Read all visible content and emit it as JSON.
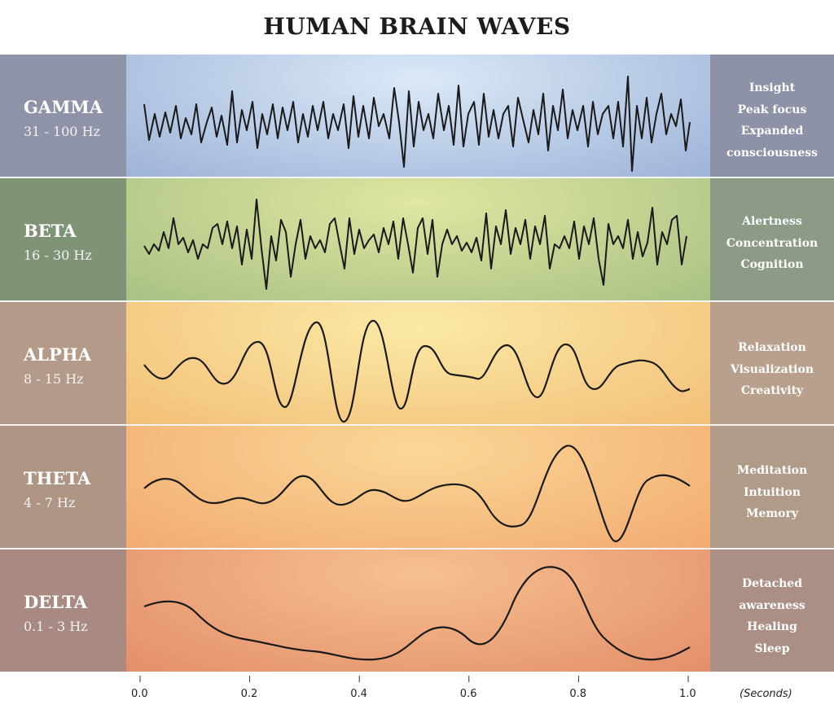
{
  "title": "HUMAN BRAIN WAVES",
  "bands": [
    {
      "name": "GAMMA",
      "range": "31 - 100 Hz",
      "states": [
        "Insight",
        "Peak focus",
        "Expanded",
        "consciousness"
      ],
      "colors": {
        "left": "#8e93a8",
        "right": "#8d92a6",
        "mid_center": "#dbe9f7",
        "mid_edge": "#9db3d8"
      }
    },
    {
      "name": "BETA",
      "range": "16 - 30 Hz",
      "states": [
        "Alertness",
        "Concentration",
        "Cognition"
      ],
      "colors": {
        "left": "#7f9377",
        "right": "#8c9a86",
        "mid_center": "#dfe6a2",
        "mid_edge": "#a9c183"
      }
    },
    {
      "name": "ALPHA",
      "range": "8 - 15 Hz",
      "states": [
        "Relaxation",
        "Visualization",
        "Creativity"
      ],
      "colors": {
        "left": "#b49a88",
        "right": "#b9a08c",
        "mid_center": "#faeaa6",
        "mid_edge": "#f3bf78"
      }
    },
    {
      "name": "THETA",
      "range": "4 - 7 Hz",
      "states": [
        "Meditation",
        "Intuition",
        "Memory"
      ],
      "colors": {
        "left": "#ae9584",
        "right": "#b09a88",
        "mid_center": "#fad895",
        "mid_edge": "#f2aa72"
      }
    },
    {
      "name": "DELTA",
      "range": "0.1 - 3 Hz",
      "states": [
        "Detached",
        "awareness",
        "Healing",
        "Sleep"
      ],
      "colors": {
        "left": "#a88a82",
        "right": "#ab8e84",
        "mid_center": "#f6c08f",
        "mid_edge": "#e48f6a"
      }
    }
  ],
  "axis": {
    "ticks": [
      "0.0",
      "0.2",
      "0.4",
      "0.6",
      "0.8",
      "1.0"
    ],
    "tick_values": [
      0.0,
      0.2,
      0.4,
      0.6,
      0.8,
      1.0
    ],
    "unit": "(Seconds)"
  }
}
